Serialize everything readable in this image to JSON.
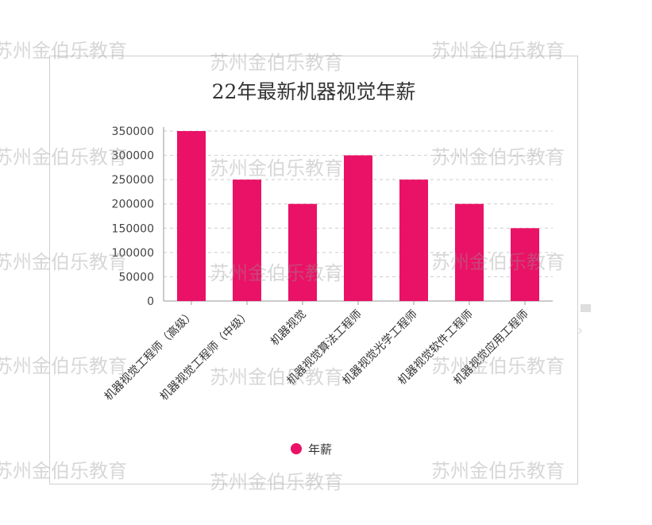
{
  "chart_data": {
    "type": "bar",
    "title": "22年最新机器视觉年薪",
    "categories": [
      "机器视觉工程师（高级）",
      "机器视觉工程师（中级）",
      "机器视觉",
      "机器视觉算法工程师",
      "机器视觉光学工程师",
      "机器视觉软件工程师",
      "机器视觉应用工程师"
    ],
    "series": [
      {
        "name": "年薪",
        "values": [
          350000,
          250000,
          200000,
          300000,
          250000,
          200000,
          150000
        ],
        "color": "#ea1266"
      }
    ],
    "xlabel": "",
    "ylabel": "",
    "ylim": [
      0,
      350000
    ],
    "yticks": [
      "0",
      "50000",
      "100000",
      "150000",
      "200000",
      "250000",
      "300000",
      "350000"
    ],
    "grid": true,
    "legend_position": "bottom"
  },
  "watermark": {
    "text": "苏州金伯乐教育",
    "color": "#969696"
  }
}
